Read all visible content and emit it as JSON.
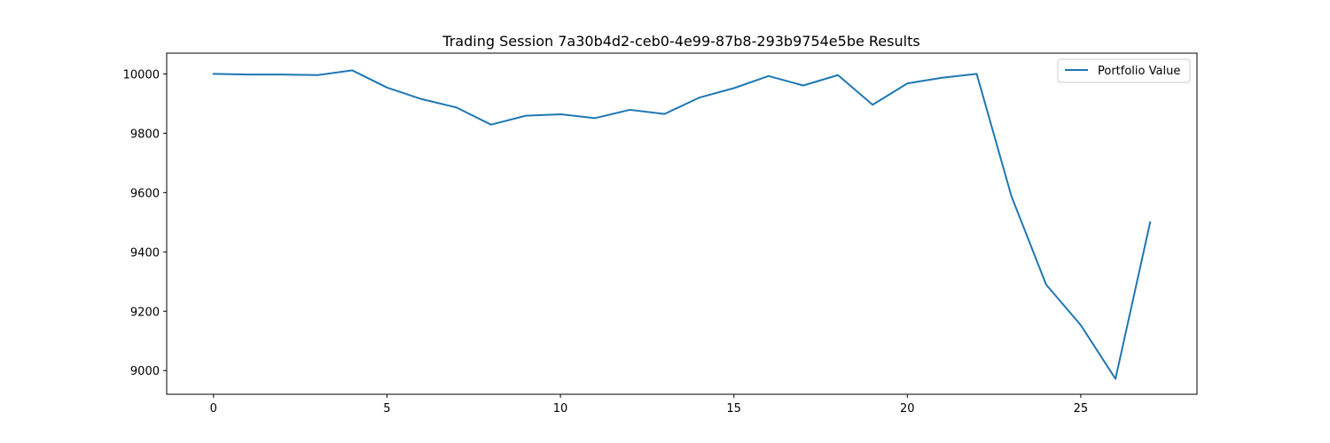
{
  "chart_data": {
    "type": "line",
    "title": "Trading Session 7a30b4d2-ceb0-4e99-87b8-293b9754e5be Results",
    "xlabel": "",
    "ylabel": "",
    "xlim": [
      -1.35,
      28.35
    ],
    "ylim": [
      8920,
      10070
    ],
    "x_ticks": [
      0,
      5,
      10,
      15,
      20,
      25
    ],
    "y_ticks": [
      9000,
      9200,
      9400,
      9600,
      9800,
      10000
    ],
    "grid": false,
    "legend_position": "top-right",
    "series": [
      {
        "name": "Portfolio Value",
        "color": "#1f77b4",
        "x": [
          0,
          1,
          2,
          3,
          4,
          5,
          6,
          7,
          8,
          9,
          10,
          11,
          12,
          13,
          14,
          15,
          16,
          17,
          18,
          19,
          20,
          21,
          22,
          23,
          24,
          25,
          26,
          27
        ],
        "values": [
          10000,
          9998,
          9998,
          9996,
          10012,
          9954,
          9915,
          9887,
          9829,
          9859,
          9864,
          9851,
          9879,
          9865,
          9920,
          9952,
          9993,
          9961,
          9996,
          9896,
          9968,
          9987,
          10000,
          9588,
          9290,
          9153,
          8972,
          9500
        ]
      }
    ]
  }
}
